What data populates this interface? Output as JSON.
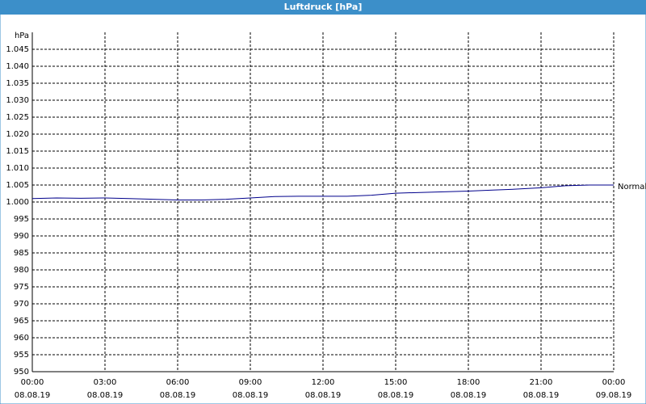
{
  "chart_data": {
    "type": "line",
    "title": "Luftdruck [hPa]",
    "y_unit": "hPa",
    "xlim": [
      0,
      24
    ],
    "xticks": [
      {
        "value": 0,
        "label": "00:00"
      },
      {
        "value": 3,
        "label": "03:00"
      },
      {
        "value": 6,
        "label": "06:00"
      },
      {
        "value": 9,
        "label": "09:00"
      },
      {
        "value": 12,
        "label": "12:00"
      },
      {
        "value": 15,
        "label": "15:00"
      },
      {
        "value": 18,
        "label": "18:00"
      },
      {
        "value": 21,
        "label": "21:00"
      },
      {
        "value": 24,
        "label": "00:00"
      }
    ],
    "xtick_dates": [
      "08.08.19",
      "08.08.19",
      "08.08.19",
      "08.08.19",
      "08.08.19",
      "08.08.19",
      "08.08.19",
      "08.08.19",
      "09.08.19"
    ],
    "ylim": [
      950,
      1050
    ],
    "yticks": [
      950,
      955,
      960,
      965,
      970,
      975,
      980,
      985,
      990,
      995,
      {
        "value": 1000,
        "label": "1.000"
      },
      {
        "value": 1005,
        "label": "1.005"
      },
      {
        "value": 1010,
        "label": "1.010"
      },
      {
        "value": 1015,
        "label": "1.015"
      },
      {
        "value": 1020,
        "label": "1.020"
      },
      {
        "value": 1025,
        "label": "1.025"
      },
      {
        "value": 1030,
        "label": "1.030"
      },
      {
        "value": 1035,
        "label": "1.035"
      },
      {
        "value": 1040,
        "label": "1.040"
      },
      {
        "value": 1045,
        "label": "1.045"
      }
    ],
    "grid": true,
    "x": [
      0,
      1,
      2,
      3,
      4,
      5,
      6,
      7,
      8,
      9,
      10,
      11,
      12,
      13,
      14,
      15,
      16,
      17,
      18,
      19,
      20,
      21,
      22,
      23,
      24
    ],
    "series": [
      {
        "name": "Normal",
        "color": "#00008b",
        "values": [
          1001,
          1001.2,
          1001.1,
          1001.2,
          1001,
          1000.8,
          1000.6,
          1000.6,
          1000.8,
          1001.2,
          1001.6,
          1001.7,
          1001.7,
          1001.7,
          1002.0,
          1002.6,
          1002.8,
          1003.0,
          1003.2,
          1003.5,
          1003.8,
          1004.2,
          1004.8,
          1005,
          1005
        ]
      }
    ]
  }
}
